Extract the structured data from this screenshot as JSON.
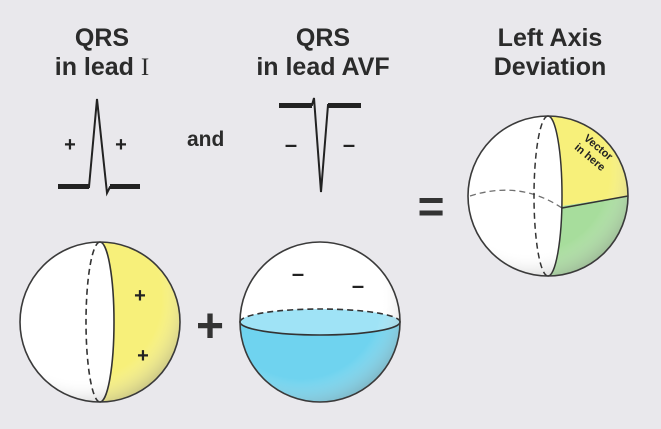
{
  "headings": {
    "lead1": {
      "line1": "QRS",
      "line2_prefix": "in lead ",
      "line2_roman": "I"
    },
    "avf": {
      "line1": "QRS",
      "line2": "in lead AVF"
    },
    "result": {
      "line1": "Left Axis",
      "line2": "Deviation"
    }
  },
  "connectors": {
    "and": "and",
    "equals": "=",
    "plus": "+"
  },
  "signs": {
    "positive": "+",
    "negative": "–"
  },
  "vector_label": {
    "line1": "Vector",
    "line2": "in here"
  },
  "colors": {
    "yellow": "#f7f07a",
    "blue": "#6fd3ef",
    "green": "#a7dd9c",
    "sphere": "#ffffff",
    "outline": "#3a3a3a"
  }
}
